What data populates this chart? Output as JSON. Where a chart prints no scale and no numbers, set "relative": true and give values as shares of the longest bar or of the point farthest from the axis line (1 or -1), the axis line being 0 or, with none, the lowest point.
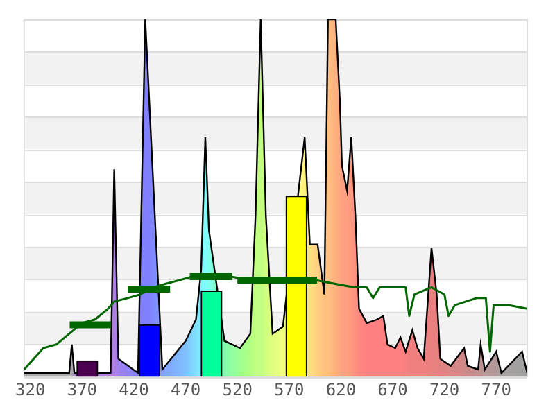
{
  "chart_data": {
    "type": "area",
    "relative": true,
    "grid": "y",
    "xlim": [
      314,
      800
    ],
    "xticks": [
      320,
      370,
      420,
      470,
      520,
      570,
      620,
      670,
      720,
      770
    ],
    "bands": [
      {
        "axis": "y",
        "from": 0.0909,
        "to": 0.1818,
        "color": "#f2f2f2"
      },
      {
        "axis": "y",
        "from": 0.2727,
        "to": 0.3636,
        "color": "#f2f2f2"
      },
      {
        "axis": "y",
        "from": 0.4545,
        "to": 0.5455,
        "color": "#f2f2f2"
      },
      {
        "axis": "y",
        "from": 0.6364,
        "to": 0.7273,
        "color": "#f2f2f2"
      },
      {
        "axis": "y",
        "from": 0.8182,
        "to": 0.9091,
        "color": "#f2f2f2"
      }
    ],
    "series": [
      {
        "color": "#000000",
        "x": [
          314,
          357.5,
          360,
          362.5,
          397.5,
          401,
          405,
          424,
          431,
          435,
          447.5,
          470,
          480,
          485,
          489,
          492.5,
          497.5,
          507.5,
          522.5,
          532.5,
          537.5,
          542.5,
          547.5,
          554,
          564,
          572.5,
          580,
          585,
          590,
          597.5,
          604,
          607.5,
          615,
          619,
          621,
          626,
          630,
          634,
          637.5,
          645,
          655,
          661,
          665,
          672.5,
          677.5,
          682.5,
          689,
          694,
          700,
          707.5,
          712.5,
          716,
          726,
          739,
          742.5,
          752.5,
          755,
          759,
          770,
          775,
          795,
          800
        ],
        "values": [
          0.01,
          0.01,
          0.09,
          0.01,
          0.01,
          0.58,
          0.05,
          0.01,
          1,
          null,
          0.02,
          0.1,
          0.16,
          0.3,
          0.67,
          0.41,
          null,
          0.1,
          0.08,
          0.12,
          0.45,
          1,
          0.45,
          0.12,
          0.14,
          null,
          null,
          0.67,
          0.37,
          0.37,
          0.23,
          1,
          1,
          0.77,
          0.59,
          0.52,
          0.67,
          0.45,
          0.19,
          0.15,
          0.16,
          0.17,
          0.09,
          0.08,
          0.11,
          0.07,
          0.13,
          0.08,
          0.05,
          0.36,
          0.23,
          0.05,
          0.03,
          0.08,
          0.03,
          0.02,
          0.09,
          0.02,
          0.07,
          0.01,
          0.07,
          0.01
        ],
        "colors": [
          "#aaaaaa",
          "#aaaaaa",
          "#aaaaaa",
          "#b090d0",
          "#b080e0",
          "#b080e0",
          "#a080f0",
          "#8080ff",
          "#8080ff",
          "#8080ff",
          "#80a0ff",
          "#80c0ff",
          "#80e0ff",
          "#80f0ff",
          "#80ffff",
          "#80fff0",
          "#80ffd0",
          "#80ffb0",
          "#a0ff90",
          "#b0ff80",
          "#c0ff80",
          "#c0ff80",
          "#d0ff80",
          "#e0ff80",
          "#f0ff80",
          "#ffff80",
          "#ffff80",
          "#fff080",
          "#ffe080",
          "#ffd080",
          "#ffc080",
          "#ffc080",
          "#ffb080",
          "#ffa880",
          "#ffa080",
          "#ffa080",
          "#ff9880",
          "#ff9080",
          "#ff8880",
          "#ff8080",
          "#ff8080",
          "#ff8080",
          "#ff8080",
          "#ff8080",
          "#ff8080",
          "#f88080",
          "#f08080",
          "#f08080",
          "#f08080",
          "#e88080",
          "#e88080",
          "#e08080",
          "#d88888",
          "#d08888",
          "#c88888",
          "#c09090",
          "#c09090",
          "#b89898",
          "#b09898",
          "#a8a0a0",
          "#a0a0a0",
          "#a0a0a0"
        ]
      },
      {
        "type": "bar",
        "x": [
          375,
          435,
          495,
          577
        ],
        "values": [
          0.044,
          0.145,
          0.24,
          0.505
        ],
        "colors": [
          "#4b0050",
          "#0000ff",
          "#00ff99",
          "#ffff00"
        ]
      },
      {
        "type": "line",
        "color": "#006600",
        "x": [
          314,
          332.5,
          345,
          357.5,
          370,
          382.5,
          395,
          401,
          414,
          426,
          439,
          451,
          464,
          476,
          495,
          514,
          532.5,
          557.5,
          595,
          632.5,
          645,
          651,
          657.5,
          682.5,
          686,
          691,
          707.5,
          720,
          724,
          730,
          751,
          760,
          764,
          767.5,
          782.5,
          800
        ],
        "values": [
          0.02,
          0.08,
          0.09,
          0.12,
          0.15,
          0.16,
          0.19,
          0.21,
          0.22,
          0.23,
          0.25,
          0.26,
          0.27,
          0.28,
          0.28,
          0.28,
          0.27,
          0.27,
          0.27,
          0.25,
          0.25,
          0.22,
          0.25,
          0.25,
          0.17,
          0.23,
          0.25,
          0.23,
          0.17,
          0.2,
          0.22,
          0.22,
          0.07,
          0.2,
          0.2,
          0.19
        ]
      },
      {
        "type": "step",
        "color": "#006600",
        "x": [
          358,
          398
        ],
        "values": [
          0.145,
          0.145
        ]
      },
      {
        "type": "step",
        "color": "#006600",
        "x": [
          414,
          455
        ],
        "values": [
          0.245,
          0.245
        ]
      },
      {
        "type": "step",
        "color": "#006600",
        "x": [
          474,
          515
        ],
        "values": [
          0.28,
          0.28
        ]
      },
      {
        "type": "step",
        "color": "#006600",
        "x": [
          520,
          597
        ],
        "values": [
          0.27,
          0.27
        ]
      }
    ]
  }
}
